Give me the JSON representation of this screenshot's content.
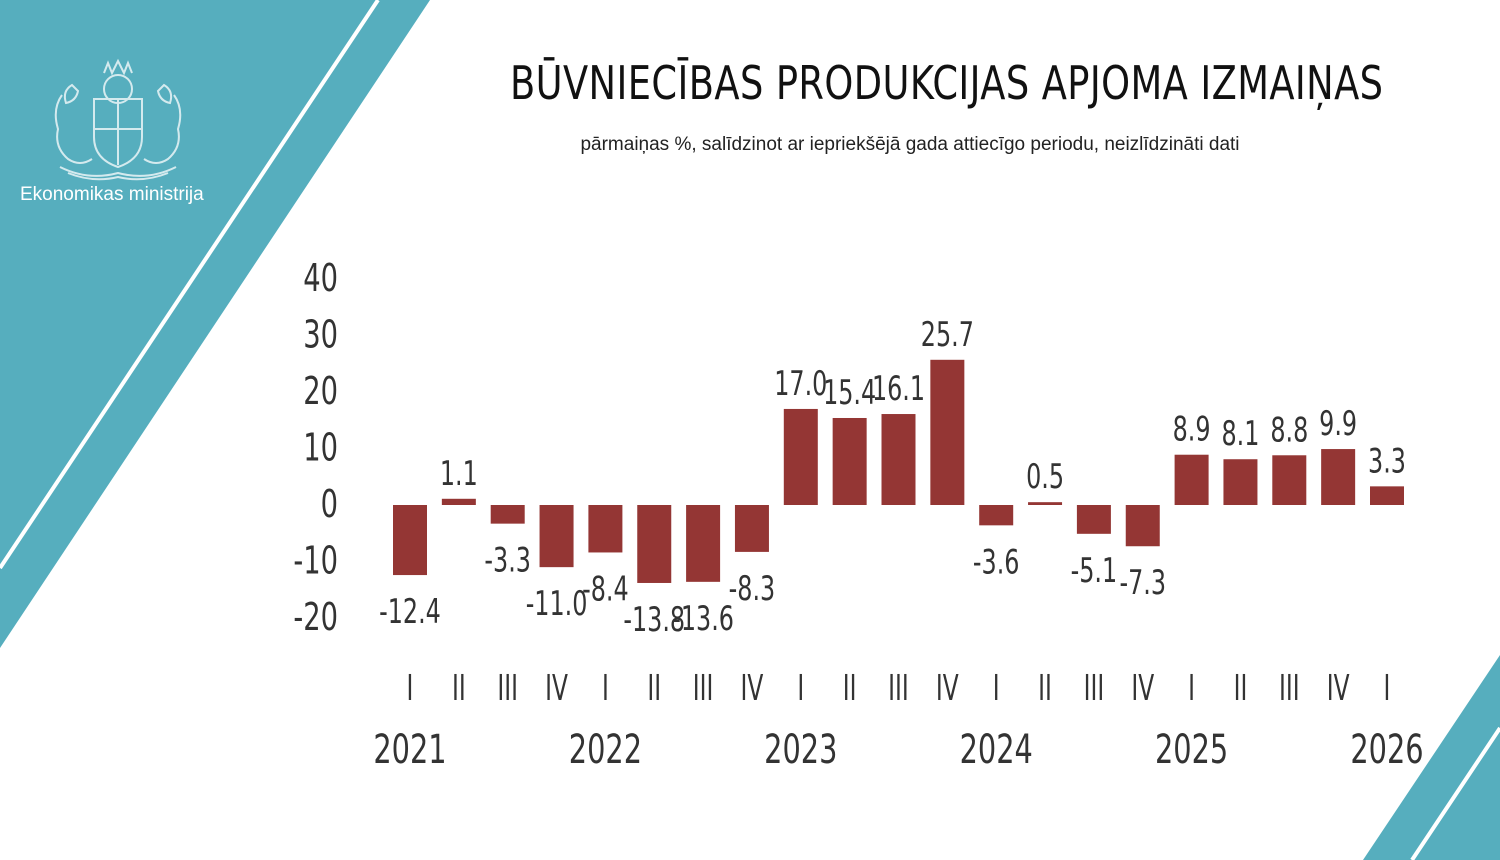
{
  "header": {
    "ministry_name": "Ekonomikas ministrija",
    "title": "BŪVNIECĪBAS PRODUKCIJAS APJOMA IZMAIŅAS",
    "subtitle": "pārmaiņas %, salīdzinot ar iepriekšējā gada attiecīgo periodu, neizlīdzināti dati"
  },
  "colors": {
    "accent": "#56aebe",
    "bar": "#943634",
    "text": "#333333"
  },
  "chart_data": {
    "type": "bar",
    "categories": [
      "I",
      "II",
      "III",
      "IV",
      "I",
      "II",
      "III",
      "IV",
      "I",
      "II",
      "III",
      "IV",
      "I",
      "II",
      "III",
      "IV",
      "I",
      "II",
      "III",
      "IV",
      "I"
    ],
    "years": [
      {
        "label": "2021",
        "start_index": 0
      },
      {
        "label": "2022",
        "start_index": 4
      },
      {
        "label": "2023",
        "start_index": 8
      },
      {
        "label": "2024",
        "start_index": 12
      },
      {
        "label": "2025",
        "start_index": 16
      },
      {
        "label": "2026",
        "start_index": 20
      }
    ],
    "values": [
      -12.4,
      1.1,
      -3.3,
      -11.0,
      -8.4,
      -13.8,
      -13.6,
      -8.3,
      17.0,
      15.4,
      16.1,
      25.7,
      -3.6,
      0.5,
      -5.1,
      -7.3,
      8.9,
      8.1,
      8.8,
      9.9,
      3.3
    ],
    "value_labels": [
      "-12.4",
      "1.1",
      "-3.3",
      "-11.0",
      "-8.4",
      "-13.8",
      "-13.6",
      "-8.3",
      "17.0",
      "15.4",
      "16.1",
      "25.7",
      "-3.6",
      "0.5",
      "-5.1",
      "-7.3",
      "8.9",
      "8.1",
      "8.8",
      "9.9",
      "3.3"
    ],
    "yticks": [
      "40",
      "30",
      "20",
      "10",
      "0",
      "-10",
      "-20"
    ],
    "ylim": [
      -20,
      40
    ],
    "grid": false,
    "legend": "none"
  }
}
